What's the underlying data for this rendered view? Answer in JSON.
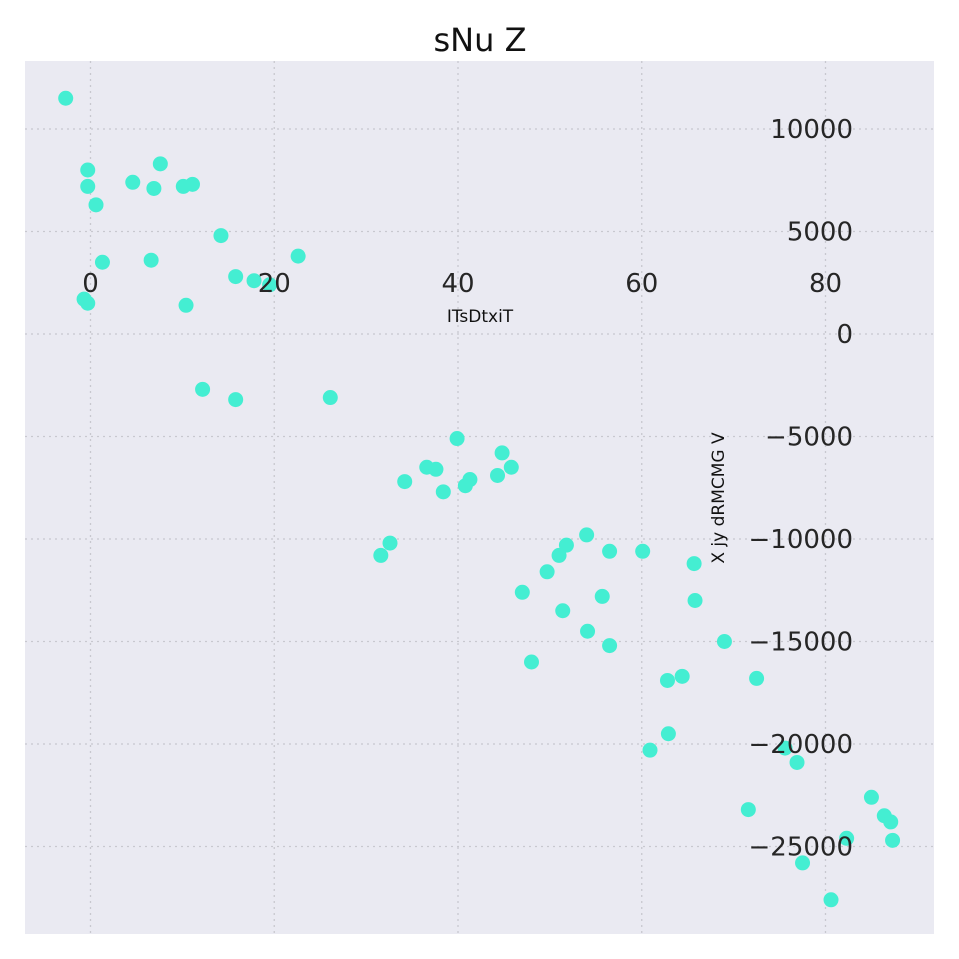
{
  "chart_data": {
    "type": "scatter",
    "title": "sNu Z",
    "xlabel": "ITsDtxiT",
    "ylabel": "X jy  dRMCMG V",
    "xlim": [
      -7.0,
      92.0
    ],
    "ylim": [
      -29000,
      13000
    ],
    "xticks": [
      0,
      20,
      40,
      60,
      80
    ],
    "xtick_labels": [
      "0",
      "20",
      "40",
      "60",
      "80"
    ],
    "yticks": [
      10000,
      5000,
      0,
      -5000,
      -10000,
      -15000,
      -20000,
      -25000
    ],
    "ytick_labels": [
      "10000",
      "5000",
      "0",
      "−5000",
      "−10000",
      "−15000",
      "−20000",
      "−25000"
    ],
    "grid": true,
    "background_color": "#eaeaf2",
    "marker_color": "#44eed2",
    "series": [
      {
        "x": [
          -2.7,
          -0.3,
          -0.3,
          0.6,
          1.3,
          4.6,
          6.6,
          6.9,
          7.6,
          10.1,
          11.1,
          -0.7,
          -0.3,
          10.4,
          14.2,
          15.8,
          17.8,
          19.5,
          22.6,
          12.2,
          15.8,
          26.1,
          36.6,
          37.6,
          34.2,
          38.4,
          39.9,
          40.8,
          41.3,
          44.3,
          44.8,
          45.8,
          32.6,
          31.6,
          47.0,
          48.0,
          49.7,
          51.0,
          51.8,
          51.4,
          54.0,
          54.1,
          55.7,
          56.5,
          56.5,
          60.1,
          60.9,
          62.9,
          62.8,
          64.4,
          65.7,
          65.8,
          69.0,
          72.5,
          71.6,
          75.6,
          76.9,
          77.5,
          80.6,
          82.3,
          85.0,
          86.4,
          87.3,
          87.1
        ],
        "y": [
          11500,
          8000,
          7200,
          6300,
          3500,
          7400,
          3600,
          7100,
          8300,
          7200,
          7300,
          1700,
          1500,
          1400,
          4800,
          2800,
          2600,
          2400,
          3800,
          -2700,
          -3200,
          -3100,
          -6500,
          -6600,
          -7200,
          -7700,
          -5100,
          -7400,
          -7100,
          -6900,
          -5800,
          -6500,
          -10200,
          -10800,
          -12600,
          -16000,
          -11600,
          -10800,
          -10300,
          -13500,
          -9800,
          -14500,
          -12800,
          -15200,
          -10600,
          -10600,
          -20300,
          -19500,
          -16900,
          -16700,
          -11200,
          -13000,
          -15000,
          -16800,
          -23200,
          -20200,
          -20900,
          -25800,
          -27600,
          -24600,
          -22600,
          -23500,
          -24700,
          -23800
        ]
      }
    ]
  }
}
